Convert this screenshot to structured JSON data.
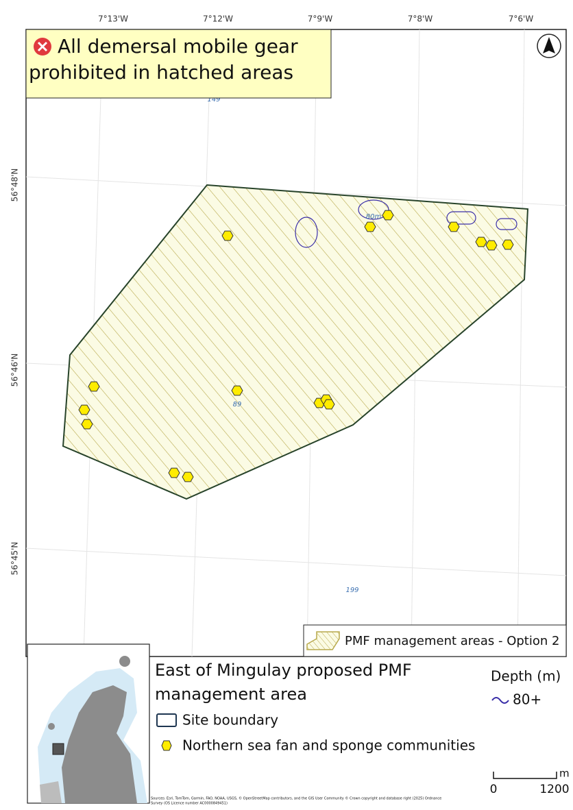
{
  "axes": {
    "top": [
      "7°13'W",
      "7°12'W",
      "7°9'W",
      "7°8'W",
      "7°6'W"
    ],
    "left": [
      "56°48'N",
      "56°46'N",
      "56°45'N"
    ]
  },
  "banner": {
    "line1": "All demersal mobile gear",
    "line2": "prohibited in hatched areas"
  },
  "map_labels": {
    "depth": [
      "149",
      "89",
      "199"
    ],
    "contour": "80m"
  },
  "map_legend": {
    "pmf": "PMF management areas - Option 2"
  },
  "legend": {
    "title": [
      "East of Mingulay proposed PMF",
      "management area"
    ],
    "site_boundary": "Site boundary",
    "points": "Northern sea fan and sponge communities",
    "depth_title": "Depth (m)",
    "depth_item": "80+"
  },
  "scale": {
    "start": "0",
    "end": "1200",
    "unit": "m"
  },
  "credits": [
    "Sources: Esri, TomTom, Garmin, FAO, NOAA, USGS, © OpenStreetMap contributors, and the GIS User Community © Crown copyright and database right (2025) Ordnance",
    "Survey (OS Licence number AC0000849451)"
  ]
}
